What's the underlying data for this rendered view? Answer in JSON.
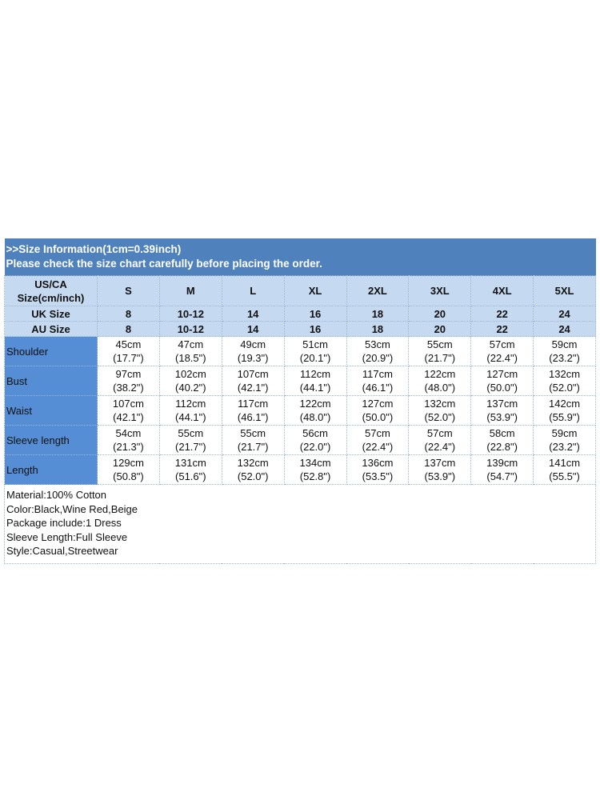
{
  "title_line1": ">>Size Information(1cm=0.39inch)",
  "title_line2": "Please check the size chart carefully before placing the order.",
  "colors": {
    "title_bg": "#4f81bd",
    "header_bg": "#c5d9f1",
    "label_bg": "#558ed5"
  },
  "header_rows": [
    {
      "label": "US/CA Size(cm/inch)",
      "values": [
        "S",
        "M",
        "L",
        "XL",
        "2XL",
        "3XL",
        "4XL",
        "5XL"
      ]
    },
    {
      "label": "UK Size",
      "values": [
        "8",
        "10-12",
        "14",
        "16",
        "18",
        "20",
        "22",
        "24"
      ]
    },
    {
      "label": "AU Size",
      "values": [
        "8",
        "10-12",
        "14",
        "16",
        "18",
        "20",
        "22",
        "24"
      ]
    }
  ],
  "rows": [
    {
      "label": "Shoulder",
      "cm": [
        "45cm",
        "47cm",
        "49cm",
        "51cm",
        "53cm",
        "55cm",
        "57cm",
        "59cm"
      ],
      "inch": [
        "(17.7\")",
        "(18.5\")",
        "(19.3\")",
        "(20.1\")",
        "(20.9\")",
        "(21.7\")",
        "(22.4\")",
        "(23.2\")"
      ]
    },
    {
      "label": "Bust",
      "cm": [
        "97cm",
        "102cm",
        "107cm",
        "112cm",
        "117cm",
        "122cm",
        "127cm",
        "132cm"
      ],
      "inch": [
        "(38.2\")",
        "(40.2\")",
        "(42.1\")",
        "(44.1\")",
        "(46.1\")",
        "(48.0\")",
        "(50.0\")",
        "(52.0\")"
      ]
    },
    {
      "label": "Waist",
      "cm": [
        "107cm",
        "112cm",
        "117cm",
        "122cm",
        "127cm",
        "132cm",
        "137cm",
        "142cm"
      ],
      "inch": [
        "(42.1\")",
        "(44.1\")",
        "(46.1\")",
        "(48.0\")",
        "(50.0\")",
        "(52.0\")",
        "(53.9\")",
        "(55.9\")"
      ]
    },
    {
      "label": "Sleeve length",
      "cm": [
        "54cm",
        "55cm",
        "55cm",
        "56cm",
        "57cm",
        "57cm",
        "58cm",
        "59cm"
      ],
      "inch": [
        "(21.3\")",
        "(21.7\")",
        "(21.7\")",
        "(22.0\")",
        "(22.4\")",
        "(22.4\")",
        "(22.8\")",
        "(23.2\")"
      ]
    },
    {
      "label": "Length",
      "cm": [
        "129cm",
        "131cm",
        "132cm",
        "134cm",
        "136cm",
        "137cm",
        "139cm",
        "141cm"
      ],
      "inch": [
        "(50.8\")",
        "(51.6\")",
        "(52.0\")",
        "(52.8\")",
        "(53.5\")",
        "(53.9\")",
        "(54.7\")",
        "(55.5\")"
      ]
    }
  ],
  "notes": [
    "Material:100% Cotton",
    "Color:Black,Wine Red,Beige",
    "Package include:1 Dress",
    "Sleeve Length:Full Sleeve",
    "Style:Casual,Streetwear"
  ]
}
